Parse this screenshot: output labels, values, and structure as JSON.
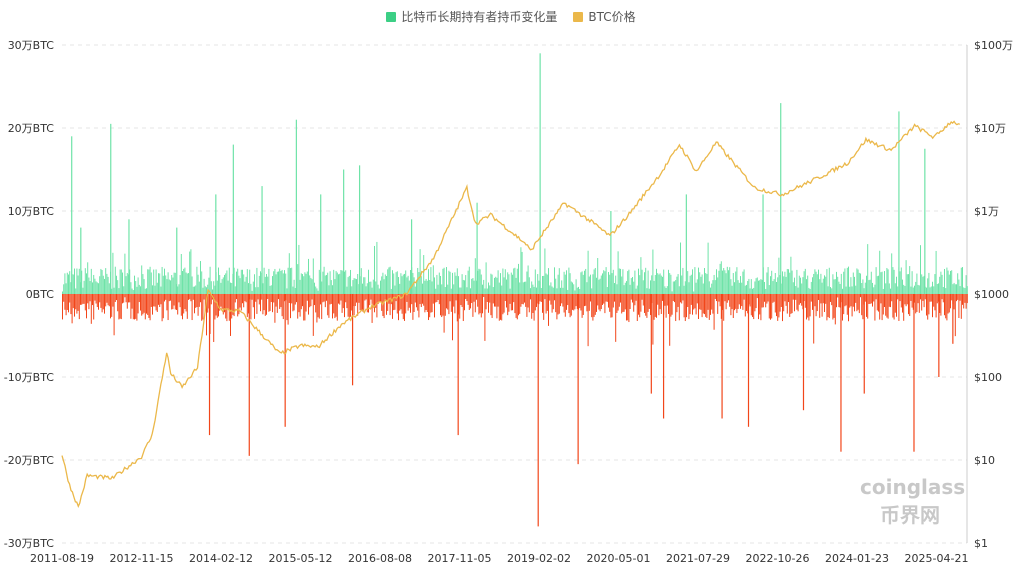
{
  "chart_data": {
    "type": "bar+line",
    "legend": [
      {
        "name": "比特币长期持有者持币变化量",
        "color": "#3ccf85"
      },
      {
        "name": "BTC价格",
        "color": "#ebb84a"
      }
    ],
    "legend_position": "top-center",
    "x_ticks": [
      "2011-08-19",
      "2012-11-15",
      "2014-02-12",
      "2015-05-12",
      "2016-08-08",
      "2017-11-05",
      "2019-02-02",
      "2020-05-01",
      "2021-07-29",
      "2022-10-26",
      "2024-01-23",
      "2025-04-21"
    ],
    "y_left": {
      "ticks": [
        "30万BTC",
        "20万BTC",
        "10万BTC",
        "0BTC",
        "-10万BTC",
        "-20万BTC",
        "-30万BTC"
      ],
      "range_wan_btc": [
        -30,
        30
      ]
    },
    "y_right": {
      "ticks": [
        "$100万",
        "$10万",
        "$1万",
        "$1000",
        "$100",
        "$10",
        "$1"
      ],
      "scale": "log",
      "range_usd": [
        1,
        1000000
      ]
    },
    "grid": "horizontal dashed",
    "positive_color": "#6fe3a8",
    "negative_color": "#f2461a",
    "price_color": "#ebb84a",
    "lth_change_spikes_wan_btc": [
      [
        "2011-10-10",
        19
      ],
      [
        "2011-12-01",
        8
      ],
      [
        "2012-05-20",
        20.5
      ],
      [
        "2012-09-01",
        9
      ],
      [
        "2013-06-01",
        8
      ],
      [
        "2013-12-05",
        -17
      ],
      [
        "2014-01-10",
        12
      ],
      [
        "2014-04-20",
        18
      ],
      [
        "2014-07-20",
        -19.5
      ],
      [
        "2014-10-01",
        13
      ],
      [
        "2015-02-10",
        -16
      ],
      [
        "2015-04-15",
        21
      ],
      [
        "2015-09-01",
        12
      ],
      [
        "2016-01-10",
        15
      ],
      [
        "2016-04-10",
        15.5
      ],
      [
        "2016-03-01",
        -11
      ],
      [
        "2017-02-01",
        9
      ],
      [
        "2017-10-25",
        -17
      ],
      [
        "2018-02-10",
        11
      ],
      [
        "2019-02-05",
        29
      ],
      [
        "2019-01-25",
        -28
      ],
      [
        "2019-09-10",
        -20.5
      ],
      [
        "2020-03-15",
        10
      ],
      [
        "2020-11-01",
        -12
      ],
      [
        "2021-01-10",
        -15
      ],
      [
        "2021-05-20",
        12
      ],
      [
        "2021-12-10",
        -15
      ],
      [
        "2022-05-10",
        -16
      ],
      [
        "2022-11-10",
        23
      ],
      [
        "2022-08-01",
        12
      ],
      [
        "2023-03-20",
        -14
      ],
      [
        "2023-10-20",
        -19
      ],
      [
        "2024-03-01",
        -12
      ],
      [
        "2024-09-15",
        22
      ],
      [
        "2024-12-10",
        -19
      ],
      [
        "2025-02-10",
        17.5
      ],
      [
        "2025-05-01",
        -10
      ],
      [
        "2025-07-20",
        -6
      ]
    ],
    "btc_price_usd": [
      [
        "2011-08-19",
        11.5
      ],
      [
        "2011-10-01",
        5
      ],
      [
        "2011-11-20",
        2.7
      ],
      [
        "2012-01-10",
        6.5
      ],
      [
        "2012-06-01",
        6
      ],
      [
        "2012-11-15",
        11
      ],
      [
        "2013-01-15",
        20
      ],
      [
        "2013-04-08",
        200
      ],
      [
        "2013-05-01",
        110
      ],
      [
        "2013-07-05",
        75
      ],
      [
        "2013-10-01",
        130
      ],
      [
        "2013-11-30",
        1100
      ],
      [
        "2014-02-12",
        650
      ],
      [
        "2014-06-01",
        620
      ],
      [
        "2015-01-14",
        190
      ],
      [
        "2015-05-12",
        240
      ],
      [
        "2015-08-20",
        230
      ],
      [
        "2016-01-01",
        430
      ],
      [
        "2016-06-15",
        700
      ],
      [
        "2017-01-01",
        980
      ],
      [
        "2017-06-10",
        2700
      ],
      [
        "2017-12-17",
        19000
      ],
      [
        "2018-02-05",
        7000
      ],
      [
        "2018-05-01",
        9000
      ],
      [
        "2018-11-20",
        4000
      ],
      [
        "2018-12-15",
        3300
      ],
      [
        "2019-06-26",
        12500
      ],
      [
        "2019-12-15",
        7000
      ],
      [
        "2020-03-13",
        5000
      ],
      [
        "2020-07-01",
        9200
      ],
      [
        "2020-12-31",
        29000
      ],
      [
        "2021-04-14",
        63000
      ],
      [
        "2021-07-20",
        30000
      ],
      [
        "2021-11-10",
        67000
      ],
      [
        "2022-06-18",
        19000
      ],
      [
        "2022-11-21",
        15800
      ],
      [
        "2023-06-15",
        25000
      ],
      [
        "2023-12-01",
        38000
      ],
      [
        "2024-03-14",
        72000
      ],
      [
        "2024-08-05",
        54000
      ],
      [
        "2024-12-17",
        106000
      ],
      [
        "2025-04-08",
        77000
      ],
      [
        "2025-07-14",
        120000
      ],
      [
        "2025-09-01",
        111000
      ]
    ]
  },
  "watermarks": {
    "brand1": "coinglass",
    "brand2": "币界网"
  }
}
